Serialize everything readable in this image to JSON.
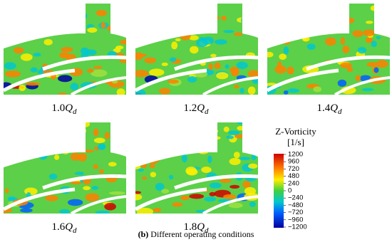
{
  "panels": [
    {
      "coef": "1.0",
      "symbol": "Q",
      "subscript": "d"
    },
    {
      "coef": "1.2",
      "symbol": "Q",
      "subscript": "d"
    },
    {
      "coef": "1.4",
      "symbol": "Q",
      "subscript": "d"
    },
    {
      "coef": "1.6",
      "symbol": "Q",
      "subscript": "d"
    },
    {
      "coef": "1.8",
      "symbol": "Q",
      "subscript": "d"
    }
  ],
  "colorbar": {
    "title": "Z-Vorticity",
    "unit": "[1/s]",
    "ticks": [
      "1200",
      "960",
      "720",
      "480",
      "240",
      "0",
      "−240",
      "−480",
      "−720",
      "−960",
      "−1200"
    ]
  },
  "caption": {
    "label": "(b)",
    "text": "Different operating conditions"
  }
}
